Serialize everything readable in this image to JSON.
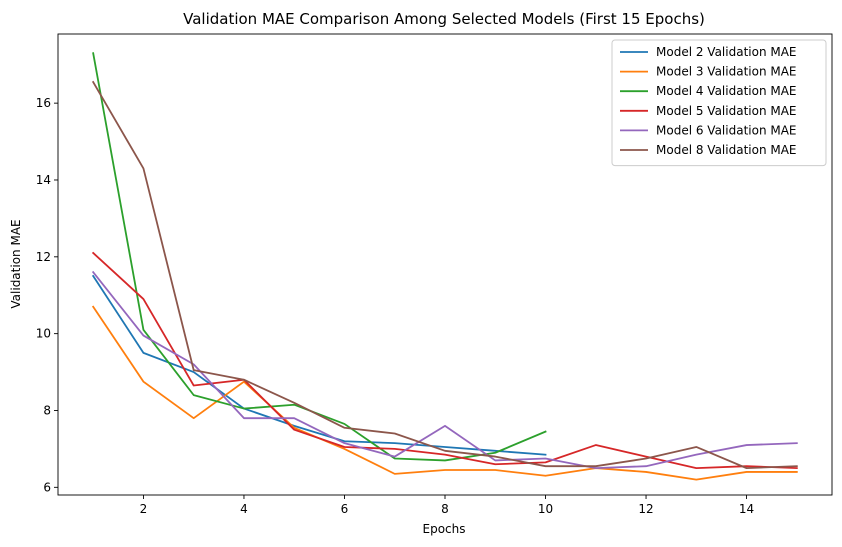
{
  "chart_data": {
    "type": "line",
    "title": "Validation MAE Comparison Among Selected Models (First 15 Epochs)",
    "xlabel": "Epochs",
    "ylabel": "Validation MAE",
    "xlim": [
      0.3,
      15.7
    ],
    "ylim": [
      5.8,
      17.8
    ],
    "xticks": [
      2,
      4,
      6,
      8,
      10,
      12,
      14
    ],
    "yticks": [
      6,
      8,
      10,
      12,
      14,
      16
    ],
    "grid": false,
    "legend_position": "top-right",
    "series": [
      {
        "name": "Model 2 Validation MAE",
        "color": "#1f77b4",
        "x": [
          1,
          2,
          3,
          4,
          5,
          6,
          7,
          8,
          9,
          10
        ],
        "values": [
          11.5,
          9.5,
          9.0,
          8.05,
          7.6,
          7.2,
          7.15,
          7.05,
          6.95,
          6.85
        ]
      },
      {
        "name": "Model 3 Validation MAE",
        "color": "#ff7f0e",
        "x": [
          1,
          2,
          3,
          4,
          5,
          6,
          7,
          8,
          9,
          10,
          11,
          12,
          13,
          14,
          15
        ],
        "values": [
          10.7,
          8.75,
          7.8,
          8.75,
          7.55,
          7.0,
          6.35,
          6.45,
          6.45,
          6.3,
          6.5,
          6.4,
          6.2,
          6.4,
          6.4
        ]
      },
      {
        "name": "Model 4 Validation MAE",
        "color": "#2ca02c",
        "x": [
          1,
          2,
          3,
          4,
          5,
          6,
          7,
          8,
          9,
          10
        ],
        "values": [
          17.3,
          10.1,
          8.4,
          8.05,
          8.15,
          7.65,
          6.75,
          6.7,
          6.9,
          7.45
        ]
      },
      {
        "name": "Model 5 Validation MAE",
        "color": "#d62728",
        "x": [
          1,
          2,
          3,
          4,
          5,
          6,
          7,
          8,
          9,
          10,
          11,
          12,
          13,
          14,
          15
        ],
        "values": [
          12.1,
          10.9,
          8.65,
          8.8,
          7.5,
          7.05,
          7.0,
          6.85,
          6.6,
          6.65,
          7.1,
          6.8,
          6.5,
          6.55,
          6.5
        ]
      },
      {
        "name": "Model 6 Validation MAE",
        "color": "#9467bd",
        "x": [
          1,
          2,
          3,
          4,
          5,
          6,
          7,
          8,
          9,
          10,
          11,
          12,
          13,
          14,
          15
        ],
        "values": [
          11.6,
          9.95,
          9.2,
          7.8,
          7.8,
          7.15,
          6.8,
          7.6,
          6.7,
          6.75,
          6.5,
          6.55,
          6.85,
          7.1,
          7.15
        ]
      },
      {
        "name": "Model 8 Validation MAE",
        "color": "#8c564b",
        "x": [
          1,
          2,
          3,
          4,
          5,
          6,
          7,
          8,
          9,
          10,
          11,
          12,
          13,
          14,
          15
        ],
        "values": [
          16.55,
          14.3,
          9.05,
          8.8,
          8.2,
          7.55,
          7.4,
          6.95,
          6.8,
          6.55,
          6.55,
          6.75,
          7.05,
          6.5,
          6.55
        ]
      }
    ]
  }
}
